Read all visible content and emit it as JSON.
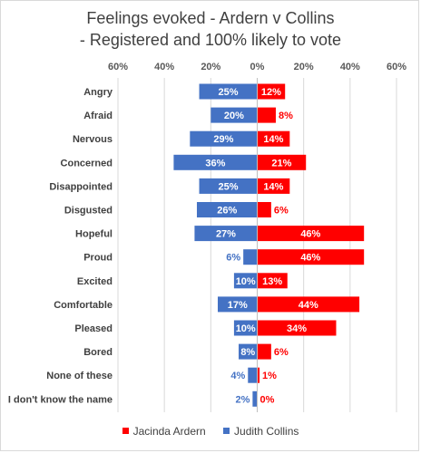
{
  "chart_data": {
    "type": "bar",
    "orientation": "horizontal-diverging",
    "title_lines": [
      "Feelings evoked - Ardern v Collins",
      "- Registered and 100% likely to vote"
    ],
    "categories": [
      "Angry",
      "Afraid",
      "Nervous",
      "Concerned",
      "Disappointed",
      "Disgusted",
      "Hopeful",
      "Proud",
      "Excited",
      "Comfortable",
      "Pleased",
      "Bored",
      "None of these",
      "I don't know the name"
    ],
    "series": [
      {
        "name": "Jacinda Ardern",
        "color": "#ff0000",
        "side": "right",
        "values": [
          12,
          8,
          14,
          21,
          14,
          6,
          46,
          46,
          13,
          44,
          34,
          6,
          1,
          0
        ]
      },
      {
        "name": "Judith Collins",
        "color": "#4472c4",
        "side": "left",
        "values": [
          25,
          20,
          29,
          36,
          25,
          26,
          27,
          6,
          10,
          17,
          10,
          8,
          4,
          2
        ]
      }
    ],
    "x_ticks": [
      "60%",
      "40%",
      "20%",
      "0%",
      "20%",
      "40%",
      "60%"
    ],
    "xlim": [
      -60,
      60
    ],
    "grid": true,
    "legend_position": "bottom"
  }
}
